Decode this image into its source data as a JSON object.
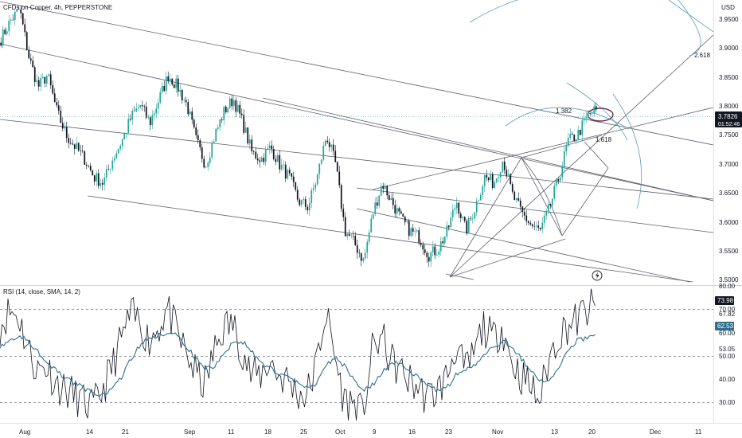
{
  "header": {
    "symbol_title": "CFDs on Copper, 4h, PEPPERSTONE",
    "currency": "USD"
  },
  "colors": {
    "up": "#26a69a",
    "down": "#131722",
    "drawing": "#5d606b",
    "fib": "#5b9cb8",
    "rsi": "#131722",
    "rsi_ma": "#2f6f8f",
    "price_tag_bg": "#131722",
    "ellipse": "#6b2747"
  },
  "main_pane": {
    "price_axis_ticks": [
      "3.9500",
      "3.9000",
      "3.8500",
      "3.8000",
      "3.7500",
      "3.7000",
      "3.6500",
      "3.6000",
      "3.5500",
      "3.5000"
    ],
    "last_price": "3.7826",
    "countdown": "01:52:46",
    "fib_labels": [
      "2.618",
      "1.382",
      "1.618"
    ]
  },
  "rsi_pane": {
    "title": "RSI (14, close, SMA, 14, 2)",
    "axis_ticks": [
      "80.00",
      "70.00",
      "60.00",
      "53.05",
      "50.00",
      "40.00",
      "30.00"
    ],
    "extra_ticks": [
      "67.82"
    ],
    "rsi_value": "73.98",
    "ma_value": "62.53"
  },
  "time_axis": {
    "ticks": [
      "Aug",
      "14",
      "21",
      "Sep",
      "11",
      "18",
      "25",
      "Oct",
      "9",
      "16",
      "23",
      "Nov",
      "13",
      "20",
      "Dec",
      "11"
    ]
  },
  "chart_data": [
    {
      "type": "candlestick",
      "title": "CFDs on Copper, 4h, PEPPERSTONE",
      "ylim": [
        3.49,
        3.965
      ],
      "y_ticks": [
        3.95,
        3.9,
        3.85,
        3.8,
        3.75,
        3.7,
        3.65,
        3.6,
        3.55,
        3.5
      ],
      "x_ticks": [
        "Aug",
        "14",
        "21",
        "Sep",
        "11",
        "18",
        "25",
        "Oct",
        "9",
        "16",
        "23",
        "Nov",
        "13",
        "20",
        "Dec",
        "11"
      ],
      "close_path": [
        3.9,
        3.93,
        3.95,
        3.87,
        3.82,
        3.84,
        3.78,
        3.74,
        3.72,
        3.7,
        3.67,
        3.66,
        3.7,
        3.73,
        3.77,
        3.79,
        3.76,
        3.8,
        3.84,
        3.82,
        3.79,
        3.73,
        3.69,
        3.74,
        3.78,
        3.8,
        3.76,
        3.71,
        3.7,
        3.72,
        3.69,
        3.67,
        3.63,
        3.62,
        3.67,
        3.74,
        3.69,
        3.58,
        3.56,
        3.53,
        3.61,
        3.66,
        3.63,
        3.6,
        3.58,
        3.57,
        3.54,
        3.55,
        3.58,
        3.63,
        3.58,
        3.62,
        3.67,
        3.66,
        3.7,
        3.64,
        3.61,
        3.59,
        3.58,
        3.62,
        3.67,
        3.73,
        3.74,
        3.77,
        3.7826
      ],
      "last": 3.7826
    },
    {
      "type": "line",
      "title": "RSI (14, close, SMA, 14, 2)",
      "ylim": [
        27,
        82
      ],
      "levels": [
        70,
        50,
        30
      ],
      "series": [
        {
          "name": "RSI",
          "values": [
            66,
            72,
            70,
            57,
            48,
            50,
            43,
            40,
            38,
            35,
            33,
            40,
            49,
            60,
            70,
            68,
            60,
            65,
            73,
            63,
            55,
            47,
            42,
            55,
            65,
            67,
            57,
            46,
            46,
            52,
            46,
            44,
            39,
            38,
            50,
            72,
            54,
            36,
            35,
            30,
            55,
            62,
            52,
            48,
            44,
            41,
            37,
            40,
            45,
            58,
            47,
            55,
            66,
            60,
            66,
            52,
            46,
            42,
            36,
            52,
            62,
            66,
            68,
            72,
            73.98
          ]
        },
        {
          "name": "MA",
          "values": [
            58,
            60,
            62,
            60,
            56,
            52,
            48,
            45,
            43,
            41,
            39,
            38,
            40,
            45,
            52,
            58,
            61,
            62,
            63,
            62,
            58,
            53,
            49,
            49,
            54,
            59,
            60,
            56,
            51,
            49,
            47,
            45,
            43,
            41,
            42,
            50,
            53,
            50,
            45,
            40,
            42,
            47,
            51,
            51,
            48,
            45,
            42,
            40,
            41,
            46,
            48,
            50,
            54,
            57,
            60,
            58,
            53,
            48,
            44,
            44,
            49,
            55,
            60,
            61,
            62.53
          ]
        }
      ]
    }
  ]
}
